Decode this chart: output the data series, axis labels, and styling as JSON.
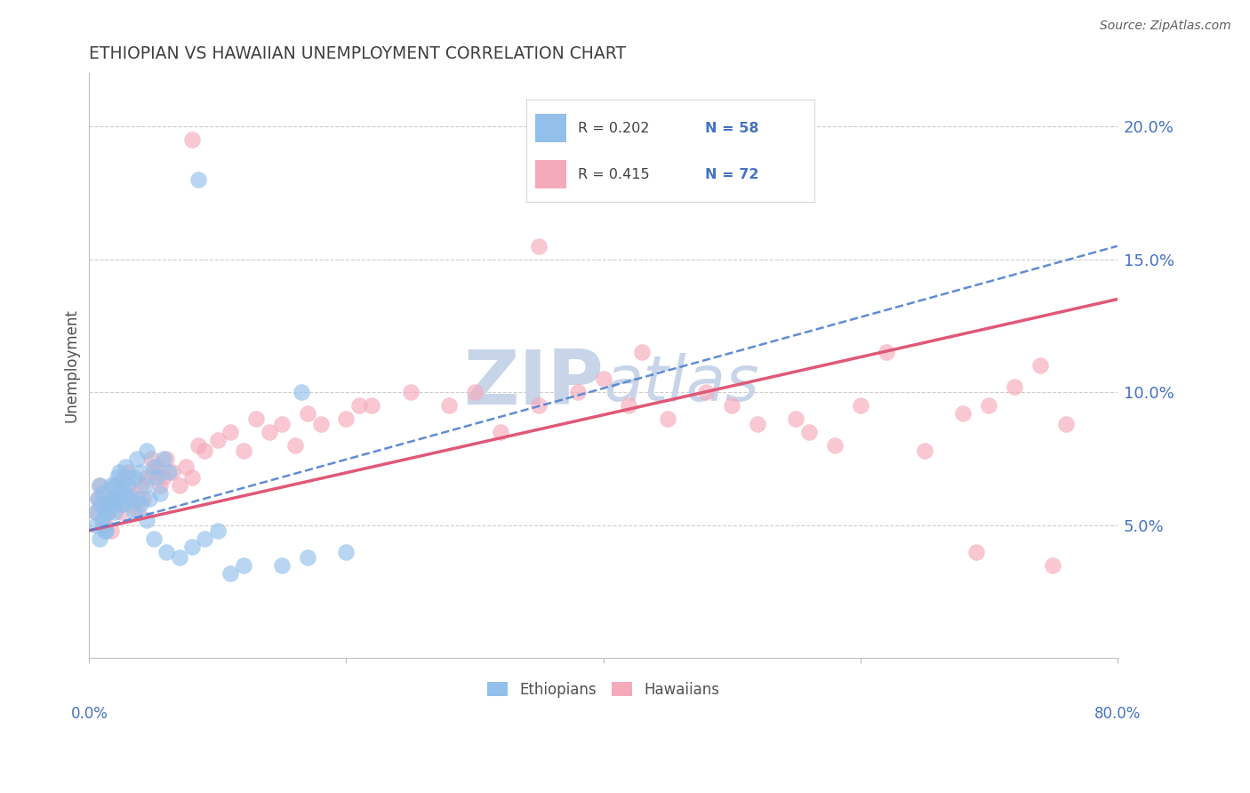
{
  "title": "ETHIOPIAN VS HAWAIIAN UNEMPLOYMENT CORRELATION CHART",
  "source": "Source: ZipAtlas.com",
  "ylabel": "Unemployment",
  "yticks": [
    "5.0%",
    "10.0%",
    "15.0%",
    "20.0%"
  ],
  "ytick_vals": [
    0.05,
    0.1,
    0.15,
    0.2
  ],
  "legend_blue_r": "R = 0.202",
  "legend_blue_n": "N = 58",
  "legend_pink_r": "R = 0.415",
  "legend_pink_n": "N = 72",
  "legend_label_blue": "Ethiopians",
  "legend_label_pink": "Hawaiians",
  "blue_color": "#92c0eb",
  "pink_color": "#f5aabb",
  "line_blue_color": "#5080d0",
  "line_pink_color": "#e05878",
  "watermark_color": "#c8d4e8",
  "title_color": "#404040",
  "axis_color": "#505050",
  "tick_color": "#4472c4",
  "grid_color": "#cccccc",
  "blue_line_start_y": 0.048,
  "blue_line_end_y": 0.155,
  "pink_line_start_y": 0.048,
  "pink_line_end_y": 0.135,
  "xlim": [
    0.0,
    0.8
  ],
  "ylim": [
    0.0,
    0.22
  ],
  "blue_x": [
    0.005,
    0.007,
    0.008,
    0.009,
    0.01,
    0.011,
    0.012,
    0.013,
    0.015,
    0.017,
    0.018,
    0.02,
    0.022,
    0.023,
    0.025,
    0.027,
    0.028,
    0.03,
    0.032,
    0.035,
    0.037,
    0.04,
    0.043,
    0.045,
    0.047,
    0.05,
    0.052,
    0.055,
    0.058,
    0.062,
    0.005,
    0.008,
    0.01,
    0.012,
    0.015,
    0.018,
    0.02,
    0.022,
    0.025,
    0.028,
    0.03,
    0.035,
    0.038,
    0.04,
    0.045,
    0.05,
    0.06,
    0.07,
    0.08,
    0.09,
    0.1,
    0.11,
    0.12,
    0.15,
    0.17,
    0.2,
    0.085,
    0.165
  ],
  "blue_y": [
    0.055,
    0.06,
    0.065,
    0.058,
    0.062,
    0.05,
    0.055,
    0.048,
    0.058,
    0.065,
    0.06,
    0.055,
    0.068,
    0.07,
    0.063,
    0.058,
    0.072,
    0.065,
    0.06,
    0.068,
    0.075,
    0.07,
    0.065,
    0.078,
    0.06,
    0.072,
    0.068,
    0.062,
    0.075,
    0.07,
    0.05,
    0.045,
    0.052,
    0.048,
    0.055,
    0.06,
    0.065,
    0.06,
    0.058,
    0.062,
    0.068,
    0.055,
    0.06,
    0.058,
    0.052,
    0.045,
    0.04,
    0.038,
    0.042,
    0.045,
    0.048,
    0.032,
    0.035,
    0.035,
    0.038,
    0.04,
    0.18,
    0.1
  ],
  "pink_x": [
    0.005,
    0.007,
    0.008,
    0.01,
    0.012,
    0.013,
    0.015,
    0.017,
    0.018,
    0.02,
    0.022,
    0.025,
    0.027,
    0.03,
    0.032,
    0.035,
    0.038,
    0.04,
    0.042,
    0.045,
    0.048,
    0.05,
    0.053,
    0.055,
    0.058,
    0.06,
    0.065,
    0.07,
    0.075,
    0.08,
    0.085,
    0.09,
    0.1,
    0.11,
    0.12,
    0.13,
    0.14,
    0.15,
    0.16,
    0.17,
    0.18,
    0.2,
    0.21,
    0.22,
    0.25,
    0.28,
    0.3,
    0.32,
    0.35,
    0.38,
    0.4,
    0.42,
    0.45,
    0.48,
    0.5,
    0.52,
    0.55,
    0.58,
    0.6,
    0.62,
    0.65,
    0.68,
    0.7,
    0.72,
    0.74,
    0.76,
    0.08,
    0.35,
    0.43,
    0.56,
    0.69,
    0.75
  ],
  "pink_y": [
    0.055,
    0.06,
    0.065,
    0.058,
    0.062,
    0.05,
    0.055,
    0.048,
    0.058,
    0.065,
    0.06,
    0.055,
    0.068,
    0.07,
    0.063,
    0.058,
    0.055,
    0.065,
    0.06,
    0.068,
    0.075,
    0.07,
    0.072,
    0.065,
    0.068,
    0.075,
    0.07,
    0.065,
    0.072,
    0.068,
    0.08,
    0.078,
    0.082,
    0.085,
    0.078,
    0.09,
    0.085,
    0.088,
    0.08,
    0.092,
    0.088,
    0.09,
    0.095,
    0.095,
    0.1,
    0.095,
    0.1,
    0.085,
    0.095,
    0.1,
    0.105,
    0.095,
    0.09,
    0.1,
    0.095,
    0.088,
    0.09,
    0.08,
    0.095,
    0.115,
    0.078,
    0.092,
    0.095,
    0.102,
    0.11,
    0.088,
    0.195,
    0.155,
    0.115,
    0.085,
    0.04,
    0.035
  ]
}
